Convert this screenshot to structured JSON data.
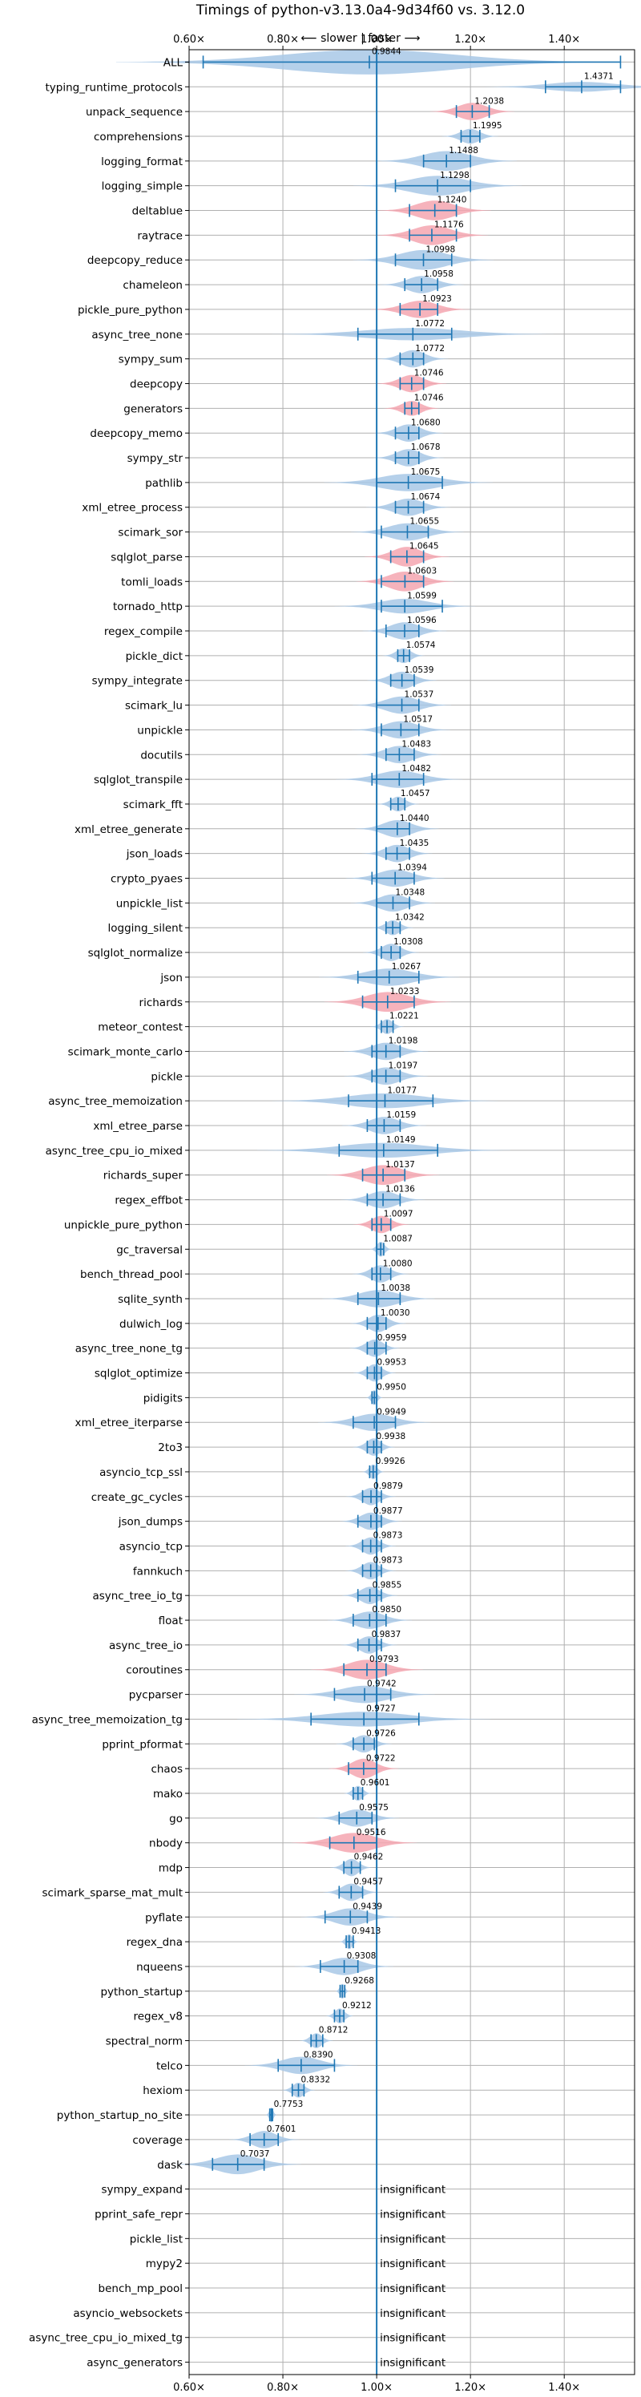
{
  "chart_data": {
    "type": "violin",
    "title": "Timings of python-v3.13.0a4-9d34f60 vs. 3.12.0",
    "subtitle": "⟵ slower | faster ⟶",
    "xlim": [
      0.6,
      1.55
    ],
    "xticks": [
      {
        "value": 0.6,
        "label": "0.60×"
      },
      {
        "value": 0.8,
        "label": "0.80×"
      },
      {
        "value": 1.0,
        "label": "1.00×"
      },
      {
        "value": 1.2,
        "label": "1.20×"
      },
      {
        "value": 1.4,
        "label": "1.40×"
      }
    ],
    "reference_line": 1.0,
    "grid": true,
    "insignificant_label": "insignificant",
    "colors": {
      "violin": "#a8c8e6",
      "violin_slower_highlight": "#f4a6b0",
      "whisker": "#1f77b4",
      "grid": "#b0b0b0"
    },
    "benchmarks": [
      {
        "name": "ALL",
        "value": 0.9844,
        "label": "0.9844",
        "lo": 0.63,
        "hi": 1.52,
        "w": 0.18,
        "spread": 0.5,
        "highlight": false
      },
      {
        "name": "typing_runtime_protocols",
        "value": 1.4371,
        "label": "1.4371",
        "lo": 1.36,
        "hi": 1.52,
        "w": 0.07,
        "spread": 0.2,
        "highlight": false
      },
      {
        "name": "unpack_sequence",
        "value": 1.2038,
        "label": "1.2038",
        "lo": 1.17,
        "hi": 1.24,
        "w": 0.03,
        "spread": 0.35,
        "highlight": true
      },
      {
        "name": "comprehensions",
        "value": 1.1995,
        "label": "1.1995",
        "lo": 1.18,
        "hi": 1.22,
        "w": 0.02,
        "spread": 0.3,
        "highlight": false
      },
      {
        "name": "logging_format",
        "value": 1.1488,
        "label": "1.1488",
        "lo": 1.1,
        "hi": 1.2,
        "w": 0.05,
        "spread": 0.4,
        "highlight": false
      },
      {
        "name": "logging_simple",
        "value": 1.1298,
        "label": "1.1298",
        "lo": 1.04,
        "hi": 1.2,
        "w": 0.06,
        "spread": 0.4,
        "highlight": false
      },
      {
        "name": "deltablue",
        "value": 1.124,
        "label": "1.1240",
        "lo": 1.07,
        "hi": 1.17,
        "w": 0.04,
        "spread": 0.4,
        "highlight": true
      },
      {
        "name": "raytrace",
        "value": 1.1176,
        "label": "1.1176",
        "lo": 1.07,
        "hi": 1.17,
        "w": 0.04,
        "spread": 0.4,
        "highlight": true
      },
      {
        "name": "deepcopy_reduce",
        "value": 1.0998,
        "label": "1.0998",
        "lo": 1.04,
        "hi": 1.16,
        "w": 0.05,
        "spread": 0.4,
        "highlight": false
      },
      {
        "name": "chameleon",
        "value": 1.0958,
        "label": "1.0958",
        "lo": 1.06,
        "hi": 1.13,
        "w": 0.03,
        "spread": 0.35,
        "highlight": false
      },
      {
        "name": "pickle_pure_python",
        "value": 1.0923,
        "label": "1.0923",
        "lo": 1.05,
        "hi": 1.13,
        "w": 0.035,
        "spread": 0.35,
        "highlight": true
      },
      {
        "name": "async_tree_none",
        "value": 1.0772,
        "label": "1.0772",
        "lo": 0.96,
        "hi": 1.16,
        "w": 0.1,
        "spread": 0.25,
        "highlight": false
      },
      {
        "name": "sympy_sum",
        "value": 1.0772,
        "label": "1.0772",
        "lo": 1.05,
        "hi": 1.1,
        "w": 0.025,
        "spread": 0.35,
        "highlight": false
      },
      {
        "name": "deepcopy",
        "value": 1.0746,
        "label": "1.0746",
        "lo": 1.05,
        "hi": 1.1,
        "w": 0.025,
        "spread": 0.35,
        "highlight": true
      },
      {
        "name": "generators",
        "value": 1.0746,
        "label": "1.0746",
        "lo": 1.06,
        "hi": 1.09,
        "w": 0.02,
        "spread": 0.3,
        "highlight": true
      },
      {
        "name": "deepcopy_memo",
        "value": 1.068,
        "label": "1.0680",
        "lo": 1.04,
        "hi": 1.09,
        "w": 0.025,
        "spread": 0.35,
        "highlight": false
      },
      {
        "name": "sympy_str",
        "value": 1.0678,
        "label": "1.0678",
        "lo": 1.04,
        "hi": 1.09,
        "w": 0.025,
        "spread": 0.35,
        "highlight": false
      },
      {
        "name": "pathlib",
        "value": 1.0675,
        "label": "1.0675",
        "lo": 1.0,
        "hi": 1.14,
        "w": 0.06,
        "spread": 0.35,
        "highlight": false
      },
      {
        "name": "xml_etree_process",
        "value": 1.0674,
        "label": "1.0674",
        "lo": 1.04,
        "hi": 1.1,
        "w": 0.03,
        "spread": 0.35,
        "highlight": false
      },
      {
        "name": "scimark_sor",
        "value": 1.0655,
        "label": "1.0655",
        "lo": 1.01,
        "hi": 1.11,
        "w": 0.04,
        "spread": 0.35,
        "highlight": false
      },
      {
        "name": "sqlglot_parse",
        "value": 1.0645,
        "label": "1.0645",
        "lo": 1.03,
        "hi": 1.1,
        "w": 0.03,
        "spread": 0.4,
        "highlight": true
      },
      {
        "name": "tomli_loads",
        "value": 1.0603,
        "label": "1.0603",
        "lo": 1.01,
        "hi": 1.1,
        "w": 0.035,
        "spread": 0.4,
        "highlight": true
      },
      {
        "name": "tornado_http",
        "value": 1.0599,
        "label": "1.0599",
        "lo": 1.01,
        "hi": 1.14,
        "w": 0.05,
        "spread": 0.3,
        "highlight": false
      },
      {
        "name": "regex_compile",
        "value": 1.0596,
        "label": "1.0596",
        "lo": 1.02,
        "hi": 1.09,
        "w": 0.03,
        "spread": 0.35,
        "highlight": false
      },
      {
        "name": "pickle_dict",
        "value": 1.0574,
        "label": "1.0574",
        "lo": 1.045,
        "hi": 1.07,
        "w": 0.015,
        "spread": 0.3,
        "highlight": false
      },
      {
        "name": "sympy_integrate",
        "value": 1.0539,
        "label": "1.0539",
        "lo": 1.03,
        "hi": 1.08,
        "w": 0.025,
        "spread": 0.35,
        "highlight": false
      },
      {
        "name": "scimark_lu",
        "value": 1.0537,
        "label": "1.0537",
        "lo": 1.0,
        "hi": 1.09,
        "w": 0.035,
        "spread": 0.35,
        "highlight": false
      },
      {
        "name": "unpickle",
        "value": 1.0517,
        "label": "1.0517",
        "lo": 1.01,
        "hi": 1.09,
        "w": 0.035,
        "spread": 0.35,
        "highlight": false
      },
      {
        "name": "docutils",
        "value": 1.0483,
        "label": "1.0483",
        "lo": 1.02,
        "hi": 1.08,
        "w": 0.03,
        "spread": 0.35,
        "highlight": false
      },
      {
        "name": "sqlglot_transpile",
        "value": 1.0482,
        "label": "1.0482",
        "lo": 0.99,
        "hi": 1.1,
        "w": 0.045,
        "spread": 0.35,
        "highlight": false
      },
      {
        "name": "scimark_fft",
        "value": 1.0457,
        "label": "1.0457",
        "lo": 1.03,
        "hi": 1.06,
        "w": 0.015,
        "spread": 0.3,
        "highlight": false
      },
      {
        "name": "xml_etree_generate",
        "value": 1.044,
        "label": "1.0440",
        "lo": 1.0,
        "hi": 1.07,
        "w": 0.03,
        "spread": 0.35,
        "highlight": false
      },
      {
        "name": "json_loads",
        "value": 1.0435,
        "label": "1.0435",
        "lo": 1.02,
        "hi": 1.07,
        "w": 0.025,
        "spread": 0.35,
        "highlight": false
      },
      {
        "name": "crypto_pyaes",
        "value": 1.0394,
        "label": "1.0394",
        "lo": 0.99,
        "hi": 1.08,
        "w": 0.035,
        "spread": 0.35,
        "highlight": false
      },
      {
        "name": "unpickle_list",
        "value": 1.0348,
        "label": "1.0348",
        "lo": 1.0,
        "hi": 1.07,
        "w": 0.03,
        "spread": 0.35,
        "highlight": false
      },
      {
        "name": "logging_silent",
        "value": 1.0342,
        "label": "1.0342",
        "lo": 1.02,
        "hi": 1.05,
        "w": 0.015,
        "spread": 0.3,
        "highlight": false
      },
      {
        "name": "sqlglot_normalize",
        "value": 1.0308,
        "label": "1.0308",
        "lo": 1.01,
        "hi": 1.05,
        "w": 0.02,
        "spread": 0.35,
        "highlight": false
      },
      {
        "name": "json",
        "value": 1.0267,
        "label": "1.0267",
        "lo": 0.96,
        "hi": 1.09,
        "w": 0.05,
        "spread": 0.35,
        "highlight": false
      },
      {
        "name": "richards",
        "value": 1.0233,
        "label": "1.0233",
        "lo": 0.97,
        "hi": 1.08,
        "w": 0.045,
        "spread": 0.4,
        "highlight": true
      },
      {
        "name": "meteor_contest",
        "value": 1.0221,
        "label": "1.0221",
        "lo": 1.01,
        "hi": 1.035,
        "w": 0.012,
        "spread": 0.3,
        "highlight": false
      },
      {
        "name": "scimark_monte_carlo",
        "value": 1.0198,
        "label": "1.0198",
        "lo": 0.99,
        "hi": 1.05,
        "w": 0.03,
        "spread": 0.35,
        "highlight": false
      },
      {
        "name": "pickle",
        "value": 1.0197,
        "label": "1.0197",
        "lo": 0.99,
        "hi": 1.05,
        "w": 0.03,
        "spread": 0.35,
        "highlight": false
      },
      {
        "name": "async_tree_memoization",
        "value": 1.0177,
        "label": "1.0177",
        "lo": 0.94,
        "hi": 1.12,
        "w": 0.08,
        "spread": 0.3,
        "highlight": false
      },
      {
        "name": "xml_etree_parse",
        "value": 1.0159,
        "label": "1.0159",
        "lo": 0.98,
        "hi": 1.05,
        "w": 0.03,
        "spread": 0.35,
        "highlight": false
      },
      {
        "name": "async_tree_cpu_io_mixed",
        "value": 1.0149,
        "label": "1.0149",
        "lo": 0.92,
        "hi": 1.13,
        "w": 0.09,
        "spread": 0.3,
        "highlight": false
      },
      {
        "name": "richards_super",
        "value": 1.0137,
        "label": "1.0137",
        "lo": 0.97,
        "hi": 1.06,
        "w": 0.04,
        "spread": 0.4,
        "highlight": true
      },
      {
        "name": "regex_effbot",
        "value": 1.0136,
        "label": "1.0136",
        "lo": 0.98,
        "hi": 1.05,
        "w": 0.03,
        "spread": 0.35,
        "highlight": false
      },
      {
        "name": "unpickle_pure_python",
        "value": 1.0097,
        "label": "1.0097",
        "lo": 0.99,
        "hi": 1.03,
        "w": 0.02,
        "spread": 0.35,
        "highlight": true
      },
      {
        "name": "gc_traversal",
        "value": 1.0087,
        "label": "1.0087",
        "lo": 1.0,
        "hi": 1.015,
        "w": 0.008,
        "spread": 0.3,
        "highlight": false
      },
      {
        "name": "bench_thread_pool",
        "value": 1.008,
        "label": "1.0080",
        "lo": 0.99,
        "hi": 1.03,
        "w": 0.02,
        "spread": 0.35,
        "highlight": false
      },
      {
        "name": "sqlite_synth",
        "value": 1.0038,
        "label": "1.0038",
        "lo": 0.96,
        "hi": 1.05,
        "w": 0.04,
        "spread": 0.35,
        "highlight": false
      },
      {
        "name": "dulwich_log",
        "value": 1.003,
        "label": "1.0030",
        "lo": 0.98,
        "hi": 1.02,
        "w": 0.02,
        "spread": 0.35,
        "highlight": false
      },
      {
        "name": "async_tree_none_tg",
        "value": 0.9959,
        "label": "0.9959",
        "lo": 0.98,
        "hi": 1.02,
        "w": 0.018,
        "spread": 0.35,
        "highlight": false
      },
      {
        "name": "sqlglot_optimize",
        "value": 0.9953,
        "label": "0.9953",
        "lo": 0.98,
        "hi": 1.01,
        "w": 0.015,
        "spread": 0.35,
        "highlight": false
      },
      {
        "name": "pidigits",
        "value": 0.995,
        "label": "0.9950",
        "lo": 0.99,
        "hi": 1.0,
        "w": 0.006,
        "spread": 0.3,
        "highlight": false
      },
      {
        "name": "xml_etree_iterparse",
        "value": 0.9949,
        "label": "0.9949",
        "lo": 0.95,
        "hi": 1.04,
        "w": 0.04,
        "spread": 0.35,
        "highlight": false
      },
      {
        "name": "2to3",
        "value": 0.9938,
        "label": "0.9938",
        "lo": 0.98,
        "hi": 1.01,
        "w": 0.015,
        "spread": 0.35,
        "highlight": false
      },
      {
        "name": "asyncio_tcp_ssl",
        "value": 0.9926,
        "label": "0.9926",
        "lo": 0.985,
        "hi": 1.0,
        "w": 0.008,
        "spread": 0.3,
        "highlight": false
      },
      {
        "name": "create_gc_cycles",
        "value": 0.9879,
        "label": "0.9879",
        "lo": 0.97,
        "hi": 1.01,
        "w": 0.018,
        "spread": 0.35,
        "highlight": false
      },
      {
        "name": "json_dumps",
        "value": 0.9877,
        "label": "0.9877",
        "lo": 0.96,
        "hi": 1.01,
        "w": 0.022,
        "spread": 0.35,
        "highlight": false
      },
      {
        "name": "asyncio_tcp",
        "value": 0.9873,
        "label": "0.9873",
        "lo": 0.97,
        "hi": 1.01,
        "w": 0.018,
        "spread": 0.35,
        "highlight": false
      },
      {
        "name": "fannkuch",
        "value": 0.9873,
        "label": "0.9873",
        "lo": 0.97,
        "hi": 1.01,
        "w": 0.018,
        "spread": 0.35,
        "highlight": false
      },
      {
        "name": "async_tree_io_tg",
        "value": 0.9855,
        "label": "0.9855",
        "lo": 0.96,
        "hi": 1.01,
        "w": 0.02,
        "spread": 0.35,
        "highlight": false
      },
      {
        "name": "float",
        "value": 0.985,
        "label": "0.9850",
        "lo": 0.95,
        "hi": 1.02,
        "w": 0.03,
        "spread": 0.35,
        "highlight": false
      },
      {
        "name": "async_tree_io",
        "value": 0.9837,
        "label": "0.9837",
        "lo": 0.96,
        "hi": 1.01,
        "w": 0.02,
        "spread": 0.35,
        "highlight": false
      },
      {
        "name": "coroutines",
        "value": 0.9793,
        "label": "0.9793",
        "lo": 0.93,
        "hi": 1.02,
        "w": 0.04,
        "spread": 0.4,
        "highlight": true
      },
      {
        "name": "pycparser",
        "value": 0.9742,
        "label": "0.9742",
        "lo": 0.91,
        "hi": 1.03,
        "w": 0.05,
        "spread": 0.35,
        "highlight": false
      },
      {
        "name": "async_tree_memoization_tg",
        "value": 0.9727,
        "label": "0.9727",
        "lo": 0.86,
        "hi": 1.09,
        "w": 0.09,
        "spread": 0.3,
        "highlight": false
      },
      {
        "name": "pprint_pformat",
        "value": 0.9726,
        "label": "0.9726",
        "lo": 0.95,
        "hi": 0.995,
        "w": 0.02,
        "spread": 0.35,
        "highlight": false
      },
      {
        "name": "chaos",
        "value": 0.9722,
        "label": "0.9722",
        "lo": 0.94,
        "hi": 1.0,
        "w": 0.025,
        "spread": 0.4,
        "highlight": true
      },
      {
        "name": "mako",
        "value": 0.9601,
        "label": "0.9601",
        "lo": 0.95,
        "hi": 0.97,
        "w": 0.01,
        "spread": 0.3,
        "highlight": false
      },
      {
        "name": "go",
        "value": 0.9575,
        "label": "0.9575",
        "lo": 0.92,
        "hi": 0.99,
        "w": 0.03,
        "spread": 0.35,
        "highlight": false
      },
      {
        "name": "nbody",
        "value": 0.9516,
        "label": "0.9516",
        "lo": 0.9,
        "hi": 1.0,
        "w": 0.045,
        "spread": 0.4,
        "highlight": true
      },
      {
        "name": "mdp",
        "value": 0.9462,
        "label": "0.9462",
        "lo": 0.93,
        "hi": 0.965,
        "w": 0.015,
        "spread": 0.35,
        "highlight": false
      },
      {
        "name": "scimark_sparse_mat_mult",
        "value": 0.9457,
        "label": "0.9457",
        "lo": 0.92,
        "hi": 0.97,
        "w": 0.02,
        "spread": 0.35,
        "highlight": false
      },
      {
        "name": "pyflate",
        "value": 0.9439,
        "label": "0.9439",
        "lo": 0.89,
        "hi": 0.98,
        "w": 0.035,
        "spread": 0.35,
        "highlight": false
      },
      {
        "name": "regex_dna",
        "value": 0.9413,
        "label": "0.9413",
        "lo": 0.935,
        "hi": 0.95,
        "w": 0.007,
        "spread": 0.3,
        "highlight": false
      },
      {
        "name": "nqueens",
        "value": 0.9308,
        "label": "0.9308",
        "lo": 0.88,
        "hi": 0.96,
        "w": 0.035,
        "spread": 0.35,
        "highlight": false
      },
      {
        "name": "python_startup",
        "value": 0.9268,
        "label": "0.9268",
        "lo": 0.922,
        "hi": 0.932,
        "w": 0.005,
        "spread": 0.3,
        "highlight": false
      },
      {
        "name": "regex_v8",
        "value": 0.9212,
        "label": "0.9212",
        "lo": 0.91,
        "hi": 0.93,
        "w": 0.01,
        "spread": 0.3,
        "highlight": false
      },
      {
        "name": "spectral_norm",
        "value": 0.8712,
        "label": "0.8712",
        "lo": 0.86,
        "hi": 0.885,
        "w": 0.012,
        "spread": 0.3,
        "highlight": false
      },
      {
        "name": "telco",
        "value": 0.839,
        "label": "0.8390",
        "lo": 0.79,
        "hi": 0.91,
        "w": 0.04,
        "spread": 0.35,
        "highlight": false
      },
      {
        "name": "hexiom",
        "value": 0.8332,
        "label": "0.8332",
        "lo": 0.82,
        "hi": 0.845,
        "w": 0.012,
        "spread": 0.3,
        "highlight": false
      },
      {
        "name": "python_startup_no_site",
        "value": 0.7753,
        "label": "0.7753",
        "lo": 0.772,
        "hi": 0.778,
        "w": 0.004,
        "spread": 0.3,
        "highlight": false
      },
      {
        "name": "coverage",
        "value": 0.7601,
        "label": "0.7601",
        "lo": 0.73,
        "hi": 0.79,
        "w": 0.025,
        "spread": 0.35,
        "highlight": false
      },
      {
        "name": "dask",
        "value": 0.7037,
        "label": "0.7037",
        "lo": 0.65,
        "hi": 0.76,
        "w": 0.045,
        "spread": 0.4,
        "highlight": false
      },
      {
        "name": "sympy_expand",
        "insignificant": true
      },
      {
        "name": "pprint_safe_repr",
        "insignificant": true
      },
      {
        "name": "pickle_list",
        "insignificant": true
      },
      {
        "name": "mypy2",
        "insignificant": true
      },
      {
        "name": "bench_mp_pool",
        "insignificant": true
      },
      {
        "name": "asyncio_websockets",
        "insignificant": true
      },
      {
        "name": "async_tree_cpu_io_mixed_tg",
        "insignificant": true
      },
      {
        "name": "async_generators",
        "insignificant": true
      }
    ]
  }
}
